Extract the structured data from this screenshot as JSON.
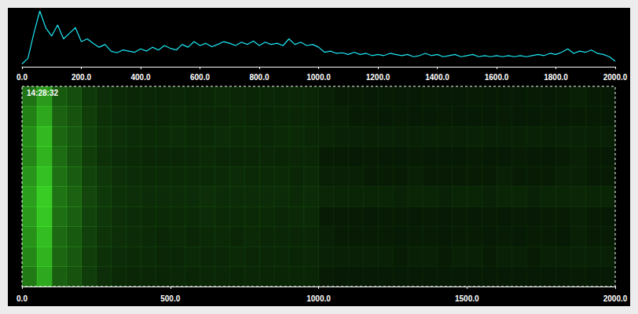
{
  "chart_data": [
    {
      "type": "line",
      "color": "#1de9f6",
      "tick_labels": "x",
      "xlim": [
        0,
        2000
      ],
      "xticks": [
        {
          "value": 0,
          "label": "0.0"
        },
        {
          "value": 200,
          "label": "200.0"
        },
        {
          "value": 400,
          "label": "400.0"
        },
        {
          "value": 600,
          "label": "600.0"
        },
        {
          "value": 800,
          "label": "800.0"
        },
        {
          "value": 1000,
          "label": "1000.0"
        },
        {
          "value": 1200,
          "label": "1200.0"
        },
        {
          "value": 1400,
          "label": "1400.0"
        },
        {
          "value": 1600,
          "label": "1600.0"
        },
        {
          "value": 1800,
          "label": "1800.0"
        },
        {
          "value": 2000,
          "label": "2000.0"
        }
      ],
      "ylim": [
        0,
        100
      ],
      "x": [
        0,
        20,
        40,
        60,
        80,
        100,
        120,
        140,
        160,
        180,
        200,
        220,
        240,
        260,
        280,
        300,
        320,
        340,
        360,
        380,
        400,
        420,
        440,
        460,
        480,
        500,
        520,
        540,
        560,
        580,
        600,
        620,
        640,
        660,
        680,
        700,
        720,
        740,
        760,
        780,
        800,
        820,
        840,
        860,
        880,
        900,
        920,
        940,
        960,
        980,
        1000,
        1020,
        1040,
        1060,
        1080,
        1100,
        1120,
        1140,
        1160,
        1180,
        1200,
        1220,
        1240,
        1260,
        1280,
        1300,
        1320,
        1340,
        1360,
        1380,
        1400,
        1420,
        1440,
        1460,
        1480,
        1500,
        1520,
        1540,
        1560,
        1580,
        1600,
        1620,
        1640,
        1660,
        1680,
        1700,
        1720,
        1740,
        1760,
        1780,
        1800,
        1820,
        1840,
        1860,
        1880,
        1900,
        1920,
        1940,
        1960,
        1980,
        2000
      ],
      "values": [
        5,
        15,
        60,
        100,
        70,
        55,
        75,
        50,
        60,
        70,
        45,
        50,
        42,
        35,
        40,
        28,
        25,
        30,
        28,
        26,
        32,
        28,
        35,
        30,
        38,
        33,
        30,
        40,
        35,
        45,
        38,
        42,
        36,
        40,
        45,
        42,
        38,
        44,
        40,
        46,
        38,
        44,
        40,
        42,
        38,
        50,
        40,
        44,
        38,
        40,
        35,
        26,
        28,
        24,
        25,
        22,
        26,
        22,
        24,
        20,
        22,
        20,
        24,
        22,
        20,
        22,
        18,
        20,
        24,
        20,
        22,
        18,
        20,
        22,
        18,
        20,
        22,
        18,
        20,
        18,
        20,
        18,
        20,
        18,
        20,
        18,
        20,
        22,
        20,
        24,
        22,
        26,
        32,
        24,
        28,
        26,
        30,
        24,
        22,
        18,
        10
      ]
    },
    {
      "type": "heatmap",
      "title": "14:28:32",
      "color": "#46ff2e",
      "tick_labels": "x",
      "xlim": [
        0,
        2000
      ],
      "xticks": [
        {
          "value": 0,
          "label": "0.0"
        },
        {
          "value": 500,
          "label": "500.0"
        },
        {
          "value": 1000,
          "label": "1000.0"
        },
        {
          "value": 1500,
          "label": "1500.0"
        },
        {
          "value": 2000,
          "label": "2000.0"
        }
      ],
      "x_bins": [
        0,
        50,
        100,
        150,
        200,
        250,
        300,
        350,
        400,
        450,
        500,
        550,
        600,
        650,
        700,
        750,
        800,
        850,
        900,
        950,
        1000,
        1050,
        1100,
        1150,
        1200,
        1250,
        1300,
        1350,
        1400,
        1450,
        1500,
        1550,
        1600,
        1650,
        1700,
        1750,
        1800,
        1850,
        1900,
        1950,
        2000
      ],
      "value_range": [
        0,
        1
      ],
      "cells": [
        [
          0.45,
          0.6,
          0.35,
          0.3,
          0.22,
          0.18,
          0.16,
          0.15,
          0.15,
          0.14,
          0.15,
          0.14,
          0.15,
          0.16,
          0.15,
          0.14,
          0.15,
          0.14,
          0.15,
          0.14,
          0.12,
          0.11,
          0.11,
          0.1,
          0.11,
          0.1,
          0.1,
          0.11,
          0.1,
          0.1,
          0.11,
          0.1,
          0.1,
          0.1,
          0.11,
          0.1,
          0.11,
          0.12,
          0.11,
          0.1
        ],
        [
          0.5,
          0.65,
          0.38,
          0.32,
          0.24,
          0.19,
          0.17,
          0.16,
          0.15,
          0.15,
          0.16,
          0.15,
          0.15,
          0.15,
          0.16,
          0.15,
          0.14,
          0.15,
          0.15,
          0.14,
          0.12,
          0.12,
          0.11,
          0.11,
          0.1,
          0.11,
          0.1,
          0.1,
          0.11,
          0.1,
          0.1,
          0.1,
          0.11,
          0.1,
          0.1,
          0.11,
          0.1,
          0.11,
          0.11,
          0.1
        ],
        [
          0.55,
          0.72,
          0.4,
          0.34,
          0.25,
          0.2,
          0.18,
          0.17,
          0.16,
          0.16,
          0.17,
          0.16,
          0.16,
          0.17,
          0.16,
          0.16,
          0.15,
          0.16,
          0.16,
          0.15,
          0.14,
          0.13,
          0.13,
          0.12,
          0.13,
          0.12,
          0.12,
          0.13,
          0.12,
          0.12,
          0.13,
          0.12,
          0.12,
          0.12,
          0.13,
          0.12,
          0.13,
          0.13,
          0.12,
          0.12
        ],
        [
          0.52,
          0.7,
          0.42,
          0.33,
          0.24,
          0.19,
          0.17,
          0.16,
          0.15,
          0.15,
          0.15,
          0.15,
          0.16,
          0.15,
          0.15,
          0.15,
          0.15,
          0.14,
          0.15,
          0.15,
          0.11,
          0.11,
          0.1,
          0.11,
          0.1,
          0.1,
          0.11,
          0.1,
          0.1,
          0.1,
          0.11,
          0.1,
          0.1,
          0.11,
          0.1,
          0.1,
          0.11,
          0.12,
          0.11,
          0.1
        ],
        [
          0.58,
          0.75,
          0.44,
          0.36,
          0.26,
          0.21,
          0.18,
          0.17,
          0.16,
          0.16,
          0.16,
          0.16,
          0.16,
          0.16,
          0.17,
          0.16,
          0.16,
          0.16,
          0.15,
          0.16,
          0.12,
          0.12,
          0.12,
          0.11,
          0.11,
          0.11,
          0.12,
          0.11,
          0.11,
          0.11,
          0.11,
          0.11,
          0.12,
          0.11,
          0.11,
          0.11,
          0.12,
          0.12,
          0.11,
          0.11
        ],
        [
          0.62,
          0.8,
          0.45,
          0.38,
          0.27,
          0.22,
          0.19,
          0.18,
          0.17,
          0.17,
          0.17,
          0.17,
          0.18,
          0.17,
          0.17,
          0.17,
          0.17,
          0.17,
          0.16,
          0.17,
          0.15,
          0.14,
          0.14,
          0.14,
          0.14,
          0.13,
          0.14,
          0.14,
          0.13,
          0.14,
          0.14,
          0.13,
          0.14,
          0.14,
          0.13,
          0.14,
          0.14,
          0.15,
          0.14,
          0.14
        ],
        [
          0.6,
          0.78,
          0.43,
          0.37,
          0.26,
          0.21,
          0.18,
          0.17,
          0.16,
          0.16,
          0.16,
          0.16,
          0.17,
          0.16,
          0.16,
          0.16,
          0.16,
          0.15,
          0.16,
          0.16,
          0.11,
          0.11,
          0.11,
          0.1,
          0.11,
          0.11,
          0.1,
          0.11,
          0.1,
          0.11,
          0.1,
          0.11,
          0.1,
          0.11,
          0.1,
          0.11,
          0.11,
          0.12,
          0.11,
          0.1
        ],
        [
          0.57,
          0.74,
          0.41,
          0.35,
          0.25,
          0.2,
          0.18,
          0.17,
          0.16,
          0.15,
          0.16,
          0.15,
          0.16,
          0.16,
          0.15,
          0.16,
          0.15,
          0.15,
          0.15,
          0.15,
          0.12,
          0.11,
          0.11,
          0.11,
          0.11,
          0.1,
          0.11,
          0.11,
          0.1,
          0.11,
          0.11,
          0.1,
          0.11,
          0.1,
          0.11,
          0.11,
          0.1,
          0.12,
          0.11,
          0.11
        ],
        [
          0.53,
          0.7,
          0.4,
          0.34,
          0.24,
          0.19,
          0.17,
          0.16,
          0.16,
          0.15,
          0.15,
          0.16,
          0.15,
          0.15,
          0.16,
          0.15,
          0.15,
          0.15,
          0.14,
          0.15,
          0.13,
          0.12,
          0.12,
          0.12,
          0.12,
          0.11,
          0.12,
          0.12,
          0.11,
          0.12,
          0.12,
          0.11,
          0.12,
          0.12,
          0.11,
          0.12,
          0.12,
          0.13,
          0.12,
          0.12
        ],
        [
          0.48,
          0.66,
          0.37,
          0.32,
          0.23,
          0.18,
          0.16,
          0.15,
          0.15,
          0.14,
          0.15,
          0.14,
          0.15,
          0.15,
          0.14,
          0.15,
          0.14,
          0.14,
          0.14,
          0.14,
          0.11,
          0.1,
          0.1,
          0.1,
          0.1,
          0.1,
          0.1,
          0.1,
          0.1,
          0.1,
          0.1,
          0.1,
          0.1,
          0.1,
          0.1,
          0.1,
          0.1,
          0.11,
          0.1,
          0.1
        ]
      ]
    }
  ]
}
